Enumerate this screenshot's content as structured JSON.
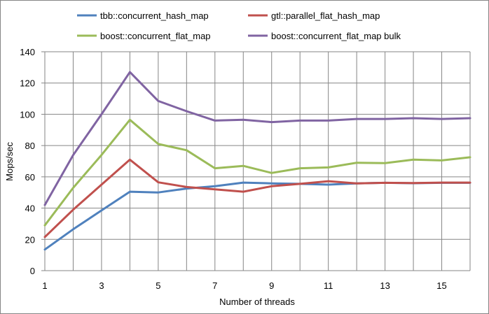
{
  "chart_data": {
    "type": "line",
    "xlabel": "Number of threads",
    "ylabel": "Mops/sec",
    "xlim": [
      1,
      16
    ],
    "ylim": [
      0,
      140
    ],
    "x_ticks": [
      1,
      3,
      5,
      7,
      9,
      11,
      13,
      15
    ],
    "y_ticks": [
      0,
      20,
      40,
      60,
      80,
      100,
      120,
      140
    ],
    "grid": true,
    "legend_position": "top",
    "x": [
      1,
      2,
      3,
      4,
      5,
      6,
      7,
      8,
      9,
      10,
      11,
      12,
      13,
      14,
      15,
      16
    ],
    "series": [
      {
        "name": "tbb::concurrent_hash_map",
        "color": "#4f81bd",
        "values": [
          13.5,
          26.5,
          38.5,
          50.5,
          50,
          52.5,
          54,
          56.3,
          55.8,
          55.5,
          55,
          55.8,
          56.2,
          55.9,
          56.2,
          56.2
        ]
      },
      {
        "name": "gtl::parallel_flat_hash_map",
        "color": "#c0504d",
        "values": [
          21.5,
          39,
          55,
          71,
          56.5,
          53.5,
          52,
          50.5,
          54,
          55.5,
          57.2,
          55.8,
          56.2,
          56,
          56.3,
          56.3
        ]
      },
      {
        "name": "boost::concurrent_flat_map",
        "color": "#9bbb59",
        "values": [
          29,
          53,
          74,
          96.5,
          81,
          77,
          65.5,
          67,
          62.5,
          65.5,
          66,
          69,
          68.8,
          71,
          70.5,
          72.5
        ]
      },
      {
        "name": "boost::concurrent_flat_map bulk",
        "color": "#8064a2",
        "values": [
          42,
          74,
          100,
          127,
          108.5,
          102,
          96,
          96.5,
          95,
          96,
          96,
          97,
          97,
          97.5,
          97,
          97.5
        ]
      }
    ]
  }
}
